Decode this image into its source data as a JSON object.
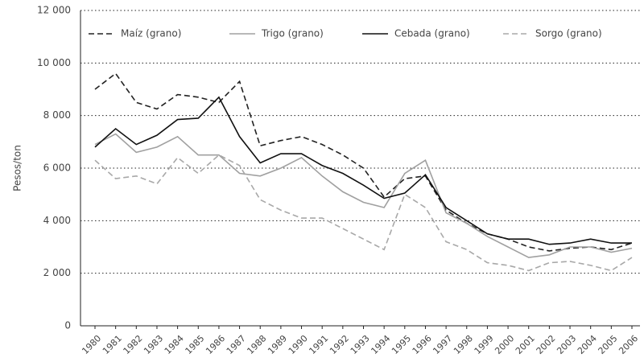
{
  "chart_data": {
    "type": "line",
    "ylabel": "Pesos/ton",
    "categories": [
      "1980",
      "1981",
      "1982",
      "1983",
      "1984",
      "1985",
      "1986",
      "1987",
      "1988",
      "1989",
      "1990",
      "1991",
      "1992",
      "1993",
      "1994",
      "1995",
      "1996",
      "1997",
      "1998",
      "1999",
      "2000",
      "2001",
      "2002",
      "2003",
      "2004",
      "2005",
      "2006"
    ],
    "series": [
      {
        "name": "Maíz (grano)",
        "color": "#222222",
        "dash": true,
        "values": [
          9000,
          9600,
          8500,
          8250,
          8800,
          8700,
          8500,
          9300,
          6850,
          7050,
          7200,
          6900,
          6500,
          6000,
          4900,
          5600,
          5700,
          4400,
          3900,
          3500,
          3300,
          3000,
          2850,
          2950,
          3000,
          2900,
          3150
        ]
      },
      {
        "name": "Trigo (grano)",
        "color": "#a0a0a0",
        "dash": false,
        "values": [
          6900,
          7300,
          6600,
          6800,
          7200,
          6500,
          6500,
          5800,
          5700,
          6000,
          6400,
          5700,
          5100,
          4700,
          4500,
          5800,
          6300,
          4300,
          3900,
          3400,
          3000,
          2600,
          2700,
          3000,
          3000,
          2800,
          2950
        ]
      },
      {
        "name": "Cebada (grano)",
        "color": "#111111",
        "dash": false,
        "values": [
          6800,
          7500,
          6900,
          7250,
          7850,
          7900,
          8700,
          7200,
          6200,
          6550,
          6550,
          6100,
          5800,
          5350,
          4850,
          5050,
          5750,
          4500,
          4000,
          3500,
          3300,
          3300,
          3100,
          3150,
          3300,
          3150,
          3150
        ]
      },
      {
        "name": "Sorgo (grano)",
        "color": "#a8a8a8",
        "dash": true,
        "values": [
          6300,
          5600,
          5700,
          5400,
          6400,
          5800,
          6500,
          6100,
          4800,
          4400,
          4100,
          4100,
          3700,
          3300,
          2900,
          5000,
          4500,
          3200,
          2900,
          2400,
          2300,
          2100,
          2400,
          2450,
          2300,
          2100,
          2600
        ]
      }
    ],
    "ylim": [
      0,
      12000
    ],
    "yticks": [
      0,
      {
        "value": 2000,
        "label": "2 000"
      },
      {
        "value": 4000,
        "label": "4 000"
      },
      {
        "value": 6000,
        "label": "6 000"
      },
      {
        "value": 8000,
        "label": "8 000"
      },
      {
        "value": 10000,
        "label": "10 000"
      },
      {
        "value": 12000,
        "label": "12 000"
      }
    ],
    "grid": true,
    "legend": "top"
  }
}
